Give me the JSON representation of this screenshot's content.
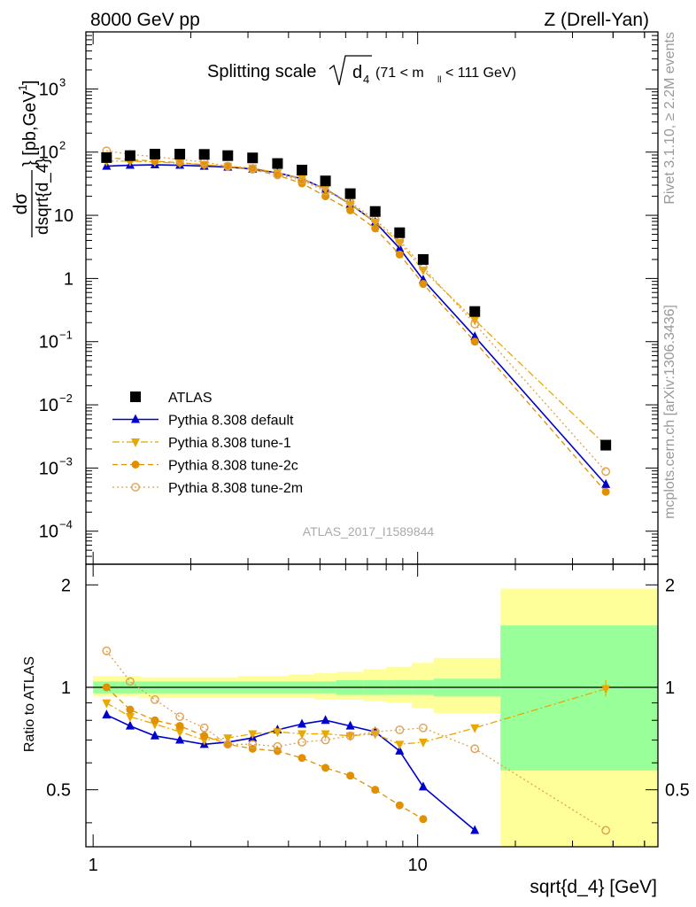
{
  "header": {
    "left": "8000 GeV pp",
    "right": "Z (Drell-Yan)"
  },
  "side_labels": {
    "rivet": "Rivet 3.1.10, ≥ 2.2M events",
    "mcplots": "mcplots.cern.ch [arXiv:1306.3436]"
  },
  "watermark": "ATLAS_2017_I1589844",
  "chart_data": [
    {
      "type": "scatter",
      "title": "Splitting scale √d₄ (71 < m_ll < 111 GeV)",
      "title_parts": {
        "main": "Splitting scale",
        "sym": "d",
        "sub": "4",
        "range_a": "(71 < m",
        "range_sub": "ll",
        "range_b": " < 111 GeV)"
      },
      "xlabel": "sqrt{d_4} [GeV]",
      "ylabel": "dσ/dsqrt{d_4} [pb,GeV⁻¹]",
      "ylabel_parts": {
        "num": "dσ",
        "den_a": "dsqrt{d_4}",
        "units_a": "} [pb,GeV",
        "units_sup": "-1",
        "units_b": "]"
      },
      "xscale": "log",
      "yscale": "log",
      "xlim": [
        0.95,
        55
      ],
      "ylim": [
        3e-05,
        8000
      ],
      "x_ticks": [
        {
          "value": 1,
          "label": "1"
        },
        {
          "value": 10,
          "label": "10"
        }
      ],
      "y_ticks": [
        {
          "value": 0.0001,
          "base": "10",
          "exp": "−4"
        },
        {
          "value": 0.001,
          "base": "10",
          "exp": "−3"
        },
        {
          "value": 0.01,
          "base": "10",
          "exp": "−2"
        },
        {
          "value": 0.1,
          "base": "10",
          "exp": "−1"
        },
        {
          "value": 1,
          "base": "1",
          "exp": ""
        },
        {
          "value": 10,
          "base": "10",
          "exp": ""
        },
        {
          "value": 100,
          "base": "10",
          "exp": "2"
        },
        {
          "value": 1000,
          "base": "10",
          "exp": "3"
        }
      ],
      "legend_position": "center-left",
      "series": [
        {
          "name": "ATLAS",
          "style": "data",
          "color": "#000000",
          "x": [
            1.1,
            1.3,
            1.55,
            1.85,
            2.2,
            2.6,
            3.1,
            3.7,
            4.4,
            5.2,
            6.2,
            7.4,
            8.8,
            10.4,
            15.0,
            38.0
          ],
          "y": [
            82,
            88,
            93,
            93,
            92,
            88,
            81,
            66,
            52,
            35,
            22,
            11.5,
            5.3,
            2.0,
            0.3,
            0.0023
          ]
        },
        {
          "name": "Pythia 8.308 default",
          "style": "solid",
          "marker": "triangle-up",
          "color": "#0000cc",
          "x": [
            1.1,
            1.3,
            1.55,
            1.85,
            2.2,
            2.6,
            3.1,
            3.7,
            4.4,
            5.2,
            6.2,
            7.4,
            8.8,
            10.4,
            15.0,
            38.0
          ],
          "y": [
            60,
            62,
            63,
            62,
            60,
            58,
            54,
            47,
            38,
            26,
            15,
            7.8,
            3.0,
            0.95,
            0.12,
            0.00055
          ]
        },
        {
          "name": "Pythia 8.308 tune-1",
          "style": "dashdot",
          "marker": "triangle-down",
          "color": "#e8a800",
          "x": [
            1.1,
            1.3,
            1.55,
            1.85,
            2.2,
            2.6,
            3.1,
            3.7,
            4.4,
            5.2,
            6.2,
            7.4,
            8.8,
            10.4,
            15.0,
            38.0
          ],
          "y": [
            72,
            72,
            70,
            67,
            63,
            60,
            56,
            47,
            38,
            26,
            15,
            7.8,
            3.7,
            1.35,
            0.22,
            0.0023
          ]
        },
        {
          "name": "Pythia 8.308 tune-2c",
          "style": "dashed",
          "marker": "circle",
          "color": "#e09000",
          "x": [
            1.1,
            1.3,
            1.55,
            1.85,
            2.2,
            2.6,
            3.1,
            3.7,
            4.4,
            5.2,
            6.2,
            7.4,
            8.8,
            10.4,
            15.0,
            38.0
          ],
          "y": [
            82,
            76,
            72,
            68,
            63,
            59,
            53,
            43,
            32,
            20,
            12,
            6.2,
            2.4,
            0.82,
            0.1,
            0.00042
          ]
        },
        {
          "name": "Pythia 8.308 tune-2m",
          "style": "dotted",
          "marker": "open-circle",
          "color": "#e0a050",
          "x": [
            1.1,
            1.3,
            1.55,
            1.85,
            2.2,
            2.6,
            3.1,
            3.7,
            4.4,
            5.2,
            6.2,
            7.4,
            8.8,
            10.4,
            15.0,
            38.0
          ],
          "y": [
            105,
            92,
            85,
            76,
            70,
            60,
            55,
            44,
            36,
            24,
            16,
            8.5,
            4.0,
            1.5,
            0.19,
            0.00088
          ]
        }
      ]
    },
    {
      "type": "scatter",
      "title": "",
      "ylabel": "Ratio to ATLAS",
      "xlabel": "sqrt{d_4} [GeV]",
      "xscale": "log",
      "yscale": "log",
      "xlim": [
        0.95,
        55
      ],
      "ylim": [
        0.34,
        2.3
      ],
      "y_ticks": [
        {
          "value": 0.5,
          "label": "0.5"
        },
        {
          "value": 1,
          "label": "1"
        },
        {
          "value": 2,
          "label": "2"
        }
      ],
      "uncertainty_bands": {
        "edges": [
          1.0,
          1.2,
          1.4,
          1.7,
          2.0,
          2.4,
          2.8,
          3.4,
          4.0,
          4.8,
          5.6,
          6.8,
          8.0,
          9.6,
          11.2,
          18.0,
          55
        ],
        "stat_color": "#99ff99",
        "total_color": "#ffff99",
        "stat_low": [
          0.96,
          0.96,
          0.96,
          0.96,
          0.96,
          0.96,
          0.96,
          0.96,
          0.96,
          0.96,
          0.95,
          0.95,
          0.95,
          0.95,
          0.94,
          0.57
        ],
        "stat_high": [
          1.04,
          1.04,
          1.04,
          1.04,
          1.04,
          1.04,
          1.04,
          1.04,
          1.04,
          1.04,
          1.05,
          1.05,
          1.05,
          1.05,
          1.06,
          1.52
        ],
        "tot_low": [
          0.94,
          0.94,
          0.93,
          0.93,
          0.93,
          0.93,
          0.93,
          0.93,
          0.93,
          0.92,
          0.92,
          0.91,
          0.9,
          0.87,
          0.84,
          0.33
        ],
        "tot_high": [
          1.08,
          1.08,
          1.07,
          1.07,
          1.07,
          1.07,
          1.08,
          1.08,
          1.09,
          1.1,
          1.11,
          1.13,
          1.15,
          1.18,
          1.22,
          1.95
        ]
      },
      "series": [
        {
          "name": "Pythia 8.308 default",
          "color": "#0000cc",
          "x": [
            1.1,
            1.3,
            1.55,
            1.85,
            2.2,
            2.6,
            3.1,
            3.7,
            4.4,
            5.2,
            6.2,
            7.4,
            8.8,
            10.4,
            15.0
          ],
          "y": [
            0.83,
            0.77,
            0.72,
            0.7,
            0.68,
            0.69,
            0.71,
            0.75,
            0.78,
            0.8,
            0.77,
            0.74,
            0.65,
            0.51,
            0.38
          ]
        },
        {
          "name": "Pythia 8.308 tune-1",
          "color": "#e8a800",
          "x": [
            1.1,
            1.3,
            1.55,
            1.85,
            2.2,
            2.6,
            3.1,
            3.7,
            4.4,
            5.2,
            6.2,
            7.4,
            8.8,
            10.4,
            15.0,
            38.0
          ],
          "y": [
            0.9,
            0.82,
            0.78,
            0.74,
            0.7,
            0.71,
            0.73,
            0.74,
            0.73,
            0.73,
            0.72,
            0.73,
            0.68,
            0.69,
            0.76,
            0.99
          ]
        },
        {
          "name": "Pythia 8.308 tune-2c",
          "color": "#e09000",
          "x": [
            1.1,
            1.3,
            1.55,
            1.85,
            2.2,
            2.6,
            3.1,
            3.7,
            4.4,
            5.2,
            6.2,
            7.4,
            8.8,
            10.4
          ],
          "y": [
            1.0,
            0.86,
            0.8,
            0.77,
            0.72,
            0.68,
            0.66,
            0.65,
            0.62,
            0.58,
            0.55,
            0.5,
            0.45,
            0.41
          ]
        },
        {
          "name": "Pythia 8.308 tune-2m",
          "color": "#e0a050",
          "x": [
            1.1,
            1.3,
            1.55,
            1.85,
            2.2,
            2.6,
            3.1,
            3.7,
            4.4,
            5.2,
            6.2,
            7.4,
            8.8,
            10.4,
            15.0,
            38.0
          ],
          "y": [
            1.28,
            1.04,
            0.92,
            0.82,
            0.76,
            0.68,
            0.68,
            0.67,
            0.69,
            0.7,
            0.72,
            0.74,
            0.75,
            0.76,
            0.66,
            0.38
          ]
        }
      ]
    }
  ]
}
